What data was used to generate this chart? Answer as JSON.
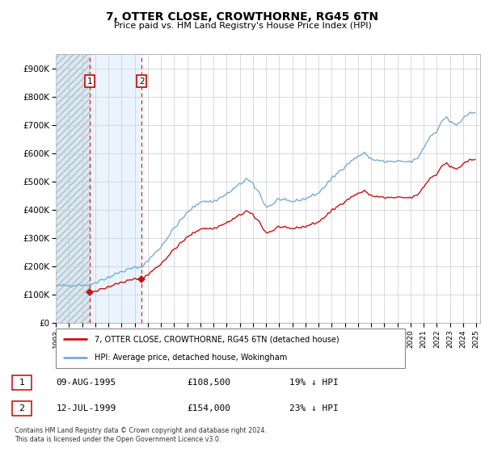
{
  "title": "7, OTTER CLOSE, CROWTHORNE, RG45 6TN",
  "subtitle": "Price paid vs. HM Land Registry's House Price Index (HPI)",
  "hpi_label": "HPI: Average price, detached house, Wokingham",
  "price_label": "7, OTTER CLOSE, CROWTHORNE, RG45 6TN (detached house)",
  "footer": "Contains HM Land Registry data © Crown copyright and database right 2024.\nThis data is licensed under the Open Government Licence v3.0.",
  "sales": [
    {
      "date_num": 1995.6,
      "price": 108500,
      "label": "1"
    },
    {
      "date_num": 1999.53,
      "price": 154000,
      "label": "2"
    }
  ],
  "sale_info": [
    {
      "label": "1",
      "date": "09-AUG-1995",
      "price": "£108,500",
      "note": "19% ↓ HPI"
    },
    {
      "label": "2",
      "date": "12-JUL-1999",
      "price": "£154,000",
      "note": "23% ↓ HPI"
    }
  ],
  "hpi_color": "#7aadd4",
  "price_color": "#cc1111",
  "sale_marker_color": "#cc1111",
  "ylim": [
    0,
    950000
  ],
  "xlim_start": 1993.0,
  "xlim_end": 2025.3,
  "yticks": [
    0,
    100000,
    200000,
    300000,
    400000,
    500000,
    600000,
    700000,
    800000,
    900000
  ],
  "ytick_labels": [
    "£0",
    "£100K",
    "£200K",
    "£300K",
    "£400K",
    "£500K",
    "£600K",
    "£700K",
    "£800K",
    "£900K"
  ],
  "xtick_years": [
    1993,
    1994,
    1995,
    1996,
    1997,
    1998,
    1999,
    2000,
    2001,
    2002,
    2003,
    2004,
    2005,
    2006,
    2007,
    2008,
    2009,
    2010,
    2011,
    2012,
    2013,
    2014,
    2015,
    2016,
    2017,
    2018,
    2019,
    2020,
    2021,
    2022,
    2023,
    2024,
    2025
  ],
  "sale1_hpi_value": 133700,
  "sale2_hpi_value": 199000
}
